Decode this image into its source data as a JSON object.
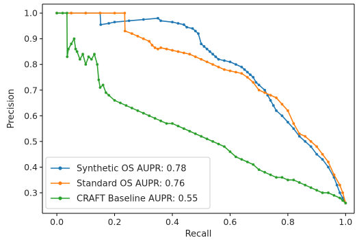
{
  "chart_data": {
    "type": "line",
    "title": "",
    "xlabel": "Recall",
    "ylabel": "Precision",
    "xlim": [
      -0.05,
      1.03
    ],
    "ylim": [
      0.22,
      1.035
    ],
    "xticks": [
      0.0,
      0.2,
      0.4,
      0.6,
      0.8,
      1.0
    ],
    "xtick_labels": [
      "0.0",
      "0.2",
      "0.4",
      "0.6",
      "0.8",
      "1.0"
    ],
    "yticks": [
      0.3,
      0.4,
      0.5,
      0.6,
      0.7,
      0.8,
      0.9,
      1.0
    ],
    "ytick_labels": [
      "0.3",
      "0.4",
      "0.5",
      "0.6",
      "0.7",
      "0.8",
      "0.9",
      "1.0"
    ],
    "grid": false,
    "legend_position": "lower-left",
    "marker": "circle",
    "series": [
      {
        "name": "Synthetic OS AUPR: 0.78",
        "color": "#1f77b4",
        "x": [
          0.0,
          0.05,
          0.1,
          0.15,
          0.152,
          0.18,
          0.2,
          0.25,
          0.3,
          0.35,
          0.36,
          0.4,
          0.42,
          0.44,
          0.45,
          0.47,
          0.48,
          0.49,
          0.5,
          0.51,
          0.52,
          0.53,
          0.54,
          0.55,
          0.56,
          0.58,
          0.6,
          0.62,
          0.64,
          0.65,
          0.66,
          0.67,
          0.68,
          0.69,
          0.7,
          0.72,
          0.73,
          0.74,
          0.75,
          0.76,
          0.78,
          0.8,
          0.82,
          0.84,
          0.86,
          0.88,
          0.9,
          0.92,
          0.94,
          0.96,
          0.97,
          0.98,
          0.99,
          1.0
        ],
        "y": [
          1.0,
          1.0,
          1.0,
          1.0,
          0.955,
          0.96,
          0.965,
          0.97,
          0.975,
          0.98,
          0.97,
          0.965,
          0.96,
          0.955,
          0.945,
          0.94,
          0.93,
          0.92,
          0.88,
          0.87,
          0.86,
          0.85,
          0.84,
          0.83,
          0.82,
          0.815,
          0.81,
          0.8,
          0.79,
          0.78,
          0.77,
          0.76,
          0.75,
          0.73,
          0.72,
          0.7,
          0.68,
          0.66,
          0.64,
          0.62,
          0.6,
          0.575,
          0.55,
          0.52,
          0.5,
          0.48,
          0.45,
          0.43,
          0.4,
          0.36,
          0.33,
          0.3,
          0.28,
          0.26
        ]
      },
      {
        "name": "Standard OS AUPR: 0.76",
        "color": "#ff7f0e",
        "x": [
          0.0,
          0.05,
          0.1,
          0.15,
          0.2,
          0.235,
          0.236,
          0.26,
          0.28,
          0.3,
          0.32,
          0.33,
          0.34,
          0.35,
          0.36,
          0.38,
          0.4,
          0.42,
          0.44,
          0.46,
          0.48,
          0.5,
          0.52,
          0.54,
          0.56,
          0.58,
          0.6,
          0.62,
          0.64,
          0.66,
          0.68,
          0.7,
          0.72,
          0.74,
          0.76,
          0.78,
          0.8,
          0.82,
          0.84,
          0.86,
          0.88,
          0.9,
          0.92,
          0.94,
          0.96,
          0.98,
          0.99,
          1.0
        ],
        "y": [
          1.0,
          1.0,
          1.0,
          1.0,
          1.0,
          1.0,
          0.93,
          0.92,
          0.91,
          0.9,
          0.89,
          0.875,
          0.865,
          0.86,
          0.865,
          0.86,
          0.855,
          0.85,
          0.845,
          0.84,
          0.83,
          0.82,
          0.81,
          0.8,
          0.79,
          0.78,
          0.775,
          0.77,
          0.765,
          0.75,
          0.73,
          0.7,
          0.69,
          0.68,
          0.67,
          0.645,
          0.62,
          0.57,
          0.53,
          0.52,
          0.5,
          0.48,
          0.45,
          0.42,
          0.37,
          0.33,
          0.3,
          0.26
        ]
      },
      {
        "name": "CRAFT Baseline AUPR: 0.55",
        "color": "#2ca02c",
        "x": [
          0.0,
          0.02,
          0.035,
          0.036,
          0.04,
          0.05,
          0.06,
          0.065,
          0.07,
          0.08,
          0.09,
          0.1,
          0.11,
          0.12,
          0.13,
          0.14,
          0.145,
          0.15,
          0.16,
          0.17,
          0.18,
          0.2,
          0.22,
          0.24,
          0.26,
          0.28,
          0.3,
          0.32,
          0.34,
          0.36,
          0.38,
          0.4,
          0.42,
          0.44,
          0.46,
          0.48,
          0.5,
          0.52,
          0.54,
          0.56,
          0.58,
          0.6,
          0.62,
          0.64,
          0.66,
          0.68,
          0.7,
          0.72,
          0.74,
          0.76,
          0.78,
          0.8,
          0.82,
          0.84,
          0.86,
          0.88,
          0.9,
          0.92,
          0.94,
          0.96,
          0.98,
          0.99,
          1.0
        ],
        "y": [
          1.0,
          1.0,
          1.0,
          0.83,
          0.86,
          0.88,
          0.9,
          0.86,
          0.85,
          0.82,
          0.84,
          0.8,
          0.83,
          0.82,
          0.84,
          0.8,
          0.74,
          0.71,
          0.72,
          0.69,
          0.68,
          0.66,
          0.65,
          0.64,
          0.63,
          0.62,
          0.61,
          0.6,
          0.59,
          0.58,
          0.57,
          0.57,
          0.56,
          0.55,
          0.54,
          0.53,
          0.52,
          0.51,
          0.5,
          0.49,
          0.48,
          0.46,
          0.44,
          0.43,
          0.42,
          0.41,
          0.39,
          0.38,
          0.37,
          0.36,
          0.36,
          0.35,
          0.35,
          0.34,
          0.33,
          0.32,
          0.31,
          0.3,
          0.3,
          0.29,
          0.28,
          0.27,
          0.26
        ]
      }
    ]
  }
}
